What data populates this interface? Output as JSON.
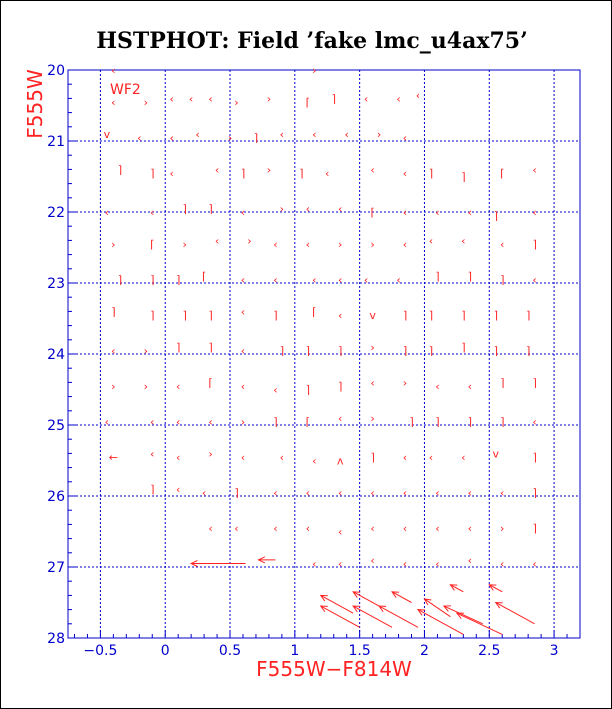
{
  "chart_data": {
    "type": "scatter",
    "title": "HSTPHOT: Field ’fake lmc_u4ax75’",
    "xlabel": "F555W−F814W",
    "ylabel": "F555W",
    "chip_label": "WF2",
    "xlim": [
      -0.75,
      3.2
    ],
    "ylim": [
      28,
      20
    ],
    "y_inverted": true,
    "grid": true,
    "x_ticks": [
      -0.5,
      0,
      0.5,
      1,
      1.5,
      2,
      2.5,
      3
    ],
    "x_tick_labels": [
      "−0.5",
      "0",
      "0.5",
      "1",
      "1.5",
      "2",
      "2.5",
      "3"
    ],
    "y_ticks": [
      20,
      21,
      22,
      23,
      24,
      25,
      26,
      27,
      28
    ],
    "y_tick_labels": [
      "20",
      "21",
      "22",
      "23",
      "24",
      "25",
      "26",
      "27",
      "28"
    ],
    "colors": {
      "axes": "#0000cc",
      "grid": "#0000cc",
      "markers": "#ff2222",
      "text": "#ff2222",
      "title": "#000000"
    },
    "markers": [
      {
        "x": -0.4,
        "y": 20.45,
        "s": "‹"
      },
      {
        "x": -0.15,
        "y": 20.45,
        "s": "›"
      },
      {
        "x": 0.05,
        "y": 20.4,
        "s": "‹"
      },
      {
        "x": 0.2,
        "y": 20.4,
        "s": "‹"
      },
      {
        "x": 0.35,
        "y": 20.4,
        "s": "‹"
      },
      {
        "x": 0.55,
        "y": 20.45,
        "s": "›"
      },
      {
        "x": 0.8,
        "y": 20.4,
        "s": "›"
      },
      {
        "x": 1.1,
        "y": 20.45,
        "s": "⌈"
      },
      {
        "x": 1.3,
        "y": 20.4,
        "s": "⌉"
      },
      {
        "x": 1.55,
        "y": 20.4,
        "s": "‹"
      },
      {
        "x": 1.8,
        "y": 20.4,
        "s": "‹"
      },
      {
        "x": 1.95,
        "y": 20.35,
        "s": "‹"
      },
      {
        "x": -0.45,
        "y": 20.9,
        "s": "v"
      },
      {
        "x": -0.2,
        "y": 20.95,
        "s": "‹"
      },
      {
        "x": 0.05,
        "y": 20.95,
        "s": "‹"
      },
      {
        "x": 0.25,
        "y": 20.9,
        "s": "‹"
      },
      {
        "x": 0.5,
        "y": 20.95,
        "s": "›"
      },
      {
        "x": 0.7,
        "y": 20.95,
        "s": "⌉"
      },
      {
        "x": 0.9,
        "y": 20.9,
        "s": "‹"
      },
      {
        "x": 1.15,
        "y": 20.9,
        "s": "‹"
      },
      {
        "x": 1.4,
        "y": 20.9,
        "s": "‹"
      },
      {
        "x": 1.65,
        "y": 20.9,
        "s": "›"
      },
      {
        "x": 1.85,
        "y": 20.95,
        "s": "‹"
      },
      {
        "x": -0.35,
        "y": 21.4,
        "s": "⌉"
      },
      {
        "x": -0.1,
        "y": 21.45,
        "s": "⌉"
      },
      {
        "x": 0.05,
        "y": 21.45,
        "s": "‹"
      },
      {
        "x": 0.4,
        "y": 21.4,
        "s": "‹"
      },
      {
        "x": 0.6,
        "y": 21.45,
        "s": "⌉"
      },
      {
        "x": 0.8,
        "y": 21.4,
        "s": "›"
      },
      {
        "x": 1.05,
        "y": 21.45,
        "s": "⌉"
      },
      {
        "x": 1.25,
        "y": 21.45,
        "s": "‹"
      },
      {
        "x": 1.6,
        "y": 21.4,
        "s": "‹"
      },
      {
        "x": 1.85,
        "y": 21.45,
        "s": "‹"
      },
      {
        "x": 2.05,
        "y": 21.45,
        "s": "⌉"
      },
      {
        "x": 2.3,
        "y": 21.5,
        "s": "⌉"
      },
      {
        "x": 2.6,
        "y": 21.45,
        "s": "⌈"
      },
      {
        "x": 2.85,
        "y": 21.4,
        "s": "‹"
      },
      {
        "x": -0.45,
        "y": 22.0,
        "s": "‹"
      },
      {
        "x": -0.1,
        "y": 22.0,
        "s": "‹"
      },
      {
        "x": 0.15,
        "y": 21.95,
        "s": "⌉"
      },
      {
        "x": 0.35,
        "y": 21.95,
        "s": "⌉"
      },
      {
        "x": 0.6,
        "y": 22.0,
        "s": "‹"
      },
      {
        "x": 0.9,
        "y": 21.95,
        "s": "›"
      },
      {
        "x": 1.1,
        "y": 21.95,
        "s": "‹"
      },
      {
        "x": 1.35,
        "y": 21.95,
        "s": "‹"
      },
      {
        "x": 1.6,
        "y": 22.0,
        "s": "⌈"
      },
      {
        "x": 1.85,
        "y": 22.0,
        "s": "‹"
      },
      {
        "x": 2.1,
        "y": 22.0,
        "s": "‹"
      },
      {
        "x": 2.35,
        "y": 22.0,
        "s": "‹"
      },
      {
        "x": 2.55,
        "y": 22.05,
        "s": "⌉"
      },
      {
        "x": 2.85,
        "y": 22.0,
        "s": "‹"
      },
      {
        "x": -0.4,
        "y": 22.45,
        "s": "›"
      },
      {
        "x": -0.1,
        "y": 22.45,
        "s": "⌈"
      },
      {
        "x": 0.15,
        "y": 22.45,
        "s": "›"
      },
      {
        "x": 0.4,
        "y": 22.4,
        "s": "‹"
      },
      {
        "x": 0.65,
        "y": 22.4,
        "s": "›"
      },
      {
        "x": 0.85,
        "y": 22.45,
        "s": "‹"
      },
      {
        "x": 1.1,
        "y": 22.45,
        "s": "‹"
      },
      {
        "x": 1.35,
        "y": 22.45,
        "s": "›"
      },
      {
        "x": 1.6,
        "y": 22.45,
        "s": "›"
      },
      {
        "x": 1.85,
        "y": 22.45,
        "s": "‹"
      },
      {
        "x": 2.05,
        "y": 22.4,
        "s": "‹"
      },
      {
        "x": 2.3,
        "y": 22.4,
        "s": "‹"
      },
      {
        "x": 2.6,
        "y": 22.45,
        "s": "‹"
      },
      {
        "x": 2.85,
        "y": 22.45,
        "s": "⌉"
      },
      {
        "x": -0.35,
        "y": 22.95,
        "s": "⌉"
      },
      {
        "x": -0.1,
        "y": 22.95,
        "s": "⌉"
      },
      {
        "x": 0.1,
        "y": 22.95,
        "s": "⌉"
      },
      {
        "x": 0.3,
        "y": 22.9,
        "s": "⌈"
      },
      {
        "x": 0.6,
        "y": 22.95,
        "s": "‹"
      },
      {
        "x": 0.85,
        "y": 22.95,
        "s": "‹"
      },
      {
        "x": 1.15,
        "y": 22.95,
        "s": "‹"
      },
      {
        "x": 1.35,
        "y": 22.95,
        "s": "‹"
      },
      {
        "x": 1.55,
        "y": 22.95,
        "s": "‹"
      },
      {
        "x": 1.8,
        "y": 22.95,
        "s": "‹"
      },
      {
        "x": 2.1,
        "y": 22.9,
        "s": "⌉"
      },
      {
        "x": 2.35,
        "y": 22.9,
        "s": "⌉"
      },
      {
        "x": 2.6,
        "y": 22.95,
        "s": "⌉"
      },
      {
        "x": 2.85,
        "y": 22.95,
        "s": "‹"
      },
      {
        "x": -0.4,
        "y": 23.4,
        "s": "⌉"
      },
      {
        "x": -0.1,
        "y": 23.45,
        "s": "⌉"
      },
      {
        "x": 0.15,
        "y": 23.45,
        "s": "⌉"
      },
      {
        "x": 0.35,
        "y": 23.45,
        "s": "⌉"
      },
      {
        "x": 0.6,
        "y": 23.4,
        "s": "‹"
      },
      {
        "x": 0.85,
        "y": 23.45,
        "s": "⌉"
      },
      {
        "x": 1.15,
        "y": 23.4,
        "s": "⌈"
      },
      {
        "x": 1.35,
        "y": 23.45,
        "s": "‹"
      },
      {
        "x": 1.6,
        "y": 23.45,
        "s": "v"
      },
      {
        "x": 1.85,
        "y": 23.45,
        "s": "⌉"
      },
      {
        "x": 2.05,
        "y": 23.45,
        "s": "⌉"
      },
      {
        "x": 2.3,
        "y": 23.45,
        "s": "⌉"
      },
      {
        "x": 2.55,
        "y": 23.45,
        "s": "⌉"
      },
      {
        "x": 2.8,
        "y": 23.45,
        "s": "⌉"
      },
      {
        "x": -0.4,
        "y": 23.95,
        "s": "‹"
      },
      {
        "x": -0.15,
        "y": 23.95,
        "s": "›"
      },
      {
        "x": 0.1,
        "y": 23.9,
        "s": "⌉"
      },
      {
        "x": 0.35,
        "y": 23.9,
        "s": "⌉"
      },
      {
        "x": 0.6,
        "y": 23.95,
        "s": "‹"
      },
      {
        "x": 0.9,
        "y": 23.95,
        "s": "⌉"
      },
      {
        "x": 1.1,
        "y": 23.95,
        "s": "⌉"
      },
      {
        "x": 1.35,
        "y": 23.95,
        "s": "⌉"
      },
      {
        "x": 1.6,
        "y": 23.9,
        "s": "›"
      },
      {
        "x": 1.85,
        "y": 23.95,
        "s": "⌉"
      },
      {
        "x": 2.05,
        "y": 23.95,
        "s": "⌉"
      },
      {
        "x": 2.3,
        "y": 23.9,
        "s": "⌉"
      },
      {
        "x": 2.55,
        "y": 23.95,
        "s": "⌉"
      },
      {
        "x": 2.8,
        "y": 23.95,
        "s": "⌉"
      },
      {
        "x": -0.4,
        "y": 24.45,
        "s": "›"
      },
      {
        "x": -0.15,
        "y": 24.45,
        "s": "›"
      },
      {
        "x": 0.1,
        "y": 24.45,
        "s": "‹"
      },
      {
        "x": 0.35,
        "y": 24.4,
        "s": "⌈"
      },
      {
        "x": 0.6,
        "y": 24.45,
        "s": "‹"
      },
      {
        "x": 0.85,
        "y": 24.5,
        "s": "‹"
      },
      {
        "x": 1.1,
        "y": 24.5,
        "s": "⌉"
      },
      {
        "x": 1.35,
        "y": 24.45,
        "s": "⌉"
      },
      {
        "x": 1.6,
        "y": 24.4,
        "s": "‹"
      },
      {
        "x": 1.85,
        "y": 24.4,
        "s": "›"
      },
      {
        "x": 2.1,
        "y": 24.45,
        "s": "‹"
      },
      {
        "x": 2.35,
        "y": 24.45,
        "s": "‹"
      },
      {
        "x": 2.6,
        "y": 24.4,
        "s": "⌉"
      },
      {
        "x": 2.85,
        "y": 24.4,
        "s": "⌉"
      },
      {
        "x": -0.45,
        "y": 24.95,
        "s": "‹"
      },
      {
        "x": -0.1,
        "y": 24.95,
        "s": "‹"
      },
      {
        "x": 0.1,
        "y": 24.95,
        "s": "‹"
      },
      {
        "x": 0.35,
        "y": 24.95,
        "s": "‹"
      },
      {
        "x": 0.6,
        "y": 24.95,
        "s": "›"
      },
      {
        "x": 0.85,
        "y": 24.95,
        "s": "⌉"
      },
      {
        "x": 1.1,
        "y": 24.95,
        "s": "⌈"
      },
      {
        "x": 1.35,
        "y": 24.9,
        "s": "‹"
      },
      {
        "x": 1.6,
        "y": 24.9,
        "s": "›"
      },
      {
        "x": 1.9,
        "y": 24.95,
        "s": "⌉"
      },
      {
        "x": 2.1,
        "y": 24.95,
        "s": "⌉"
      },
      {
        "x": 2.35,
        "y": 24.95,
        "s": "⌉"
      },
      {
        "x": 2.6,
        "y": 24.95,
        "s": "⌉"
      },
      {
        "x": 2.85,
        "y": 24.95,
        "s": "‹"
      },
      {
        "x": -0.4,
        "y": 25.45,
        "s": "←"
      },
      {
        "x": -0.1,
        "y": 25.4,
        "s": "‹"
      },
      {
        "x": 0.1,
        "y": 25.45,
        "s": "‹"
      },
      {
        "x": 0.35,
        "y": 25.4,
        "s": "›"
      },
      {
        "x": 0.6,
        "y": 25.45,
        "s": "‹"
      },
      {
        "x": 0.9,
        "y": 25.45,
        "s": "‹"
      },
      {
        "x": 1.15,
        "y": 25.5,
        "s": "‹"
      },
      {
        "x": 1.35,
        "y": 25.5,
        "s": "ʌ"
      },
      {
        "x": 1.6,
        "y": 25.45,
        "s": "⌉"
      },
      {
        "x": 1.85,
        "y": 25.45,
        "s": "‹"
      },
      {
        "x": 2.05,
        "y": 25.45,
        "s": "‹"
      },
      {
        "x": 2.3,
        "y": 25.45,
        "s": "‹"
      },
      {
        "x": 2.55,
        "y": 25.4,
        "s": "v"
      },
      {
        "x": 2.85,
        "y": 25.45,
        "s": "⌉"
      },
      {
        "x": -0.1,
        "y": 25.9,
        "s": "⌉"
      },
      {
        "x": 0.1,
        "y": 25.9,
        "s": "‹"
      },
      {
        "x": 0.3,
        "y": 25.95,
        "s": "‹"
      },
      {
        "x": 0.55,
        "y": 25.95,
        "s": "⌉"
      },
      {
        "x": 0.85,
        "y": 25.95,
        "s": "‹"
      },
      {
        "x": 1.1,
        "y": 25.95,
        "s": "‹"
      },
      {
        "x": 1.35,
        "y": 25.95,
        "s": "‹"
      },
      {
        "x": 1.6,
        "y": 25.95,
        "s": "‹"
      },
      {
        "x": 1.85,
        "y": 25.95,
        "s": "‹"
      },
      {
        "x": 2.1,
        "y": 25.95,
        "s": "‹"
      },
      {
        "x": 2.35,
        "y": 25.95,
        "s": "‹"
      },
      {
        "x": 2.6,
        "y": 25.95,
        "s": "‹"
      },
      {
        "x": 2.85,
        "y": 25.95,
        "s": "⌉"
      },
      {
        "x": 0.35,
        "y": 26.45,
        "s": "‹"
      },
      {
        "x": 0.55,
        "y": 26.45,
        "s": "‹"
      },
      {
        "x": 0.85,
        "y": 26.45,
        "s": "‹"
      },
      {
        "x": 1.1,
        "y": 26.45,
        "s": "‹"
      },
      {
        "x": 1.35,
        "y": 26.5,
        "s": "‹"
      },
      {
        "x": 1.6,
        "y": 26.45,
        "s": "‹"
      },
      {
        "x": 1.85,
        "y": 26.45,
        "s": "‹"
      },
      {
        "x": 2.1,
        "y": 26.45,
        "s": "‹"
      },
      {
        "x": 2.35,
        "y": 26.45,
        "s": "‹"
      },
      {
        "x": 2.6,
        "y": 26.45,
        "s": "›"
      },
      {
        "x": 2.85,
        "y": 26.45,
        "s": "⌉"
      },
      {
        "x": 1.15,
        "y": 26.95,
        "s": "‹"
      },
      {
        "x": 1.35,
        "y": 26.95,
        "s": "‹"
      },
      {
        "x": 1.6,
        "y": 26.9,
        "s": "‹"
      },
      {
        "x": 1.85,
        "y": 26.95,
        "s": "‹"
      },
      {
        "x": 2.1,
        "y": 26.95,
        "s": "‹"
      },
      {
        "x": 2.35,
        "y": 26.9,
        "s": "‹"
      },
      {
        "x": 2.6,
        "y": 26.95,
        "s": "‹"
      },
      {
        "x": 2.85,
        "y": 26.95,
        "s": "‹"
      },
      {
        "x": 1.15,
        "y": 20.0,
        "s": "›"
      },
      {
        "x": -0.4,
        "y": 20.0,
        "s": "‹"
      }
    ],
    "vectors": [
      {
        "x0": 0.62,
        "y0": 26.95,
        "x1": 0.2,
        "y1": 26.95
      },
      {
        "x0": 0.85,
        "y0": 26.9,
        "x1": 0.72,
        "y1": 26.9
      },
      {
        "x0": 1.5,
        "y0": 27.85,
        "x1": 1.2,
        "y1": 27.55
      },
      {
        "x0": 1.45,
        "y0": 27.65,
        "x1": 1.2,
        "y1": 27.4
      },
      {
        "x0": 1.75,
        "y0": 27.85,
        "x1": 1.45,
        "y1": 27.55
      },
      {
        "x0": 1.65,
        "y0": 27.55,
        "x1": 1.45,
        "y1": 27.35
      },
      {
        "x0": 1.95,
        "y0": 27.85,
        "x1": 1.65,
        "y1": 27.55
      },
      {
        "x0": 1.9,
        "y0": 27.5,
        "x1": 1.75,
        "y1": 27.35
      },
      {
        "x0": 2.3,
        "y0": 27.95,
        "x1": 1.95,
        "y1": 27.6
      },
      {
        "x0": 2.2,
        "y0": 27.7,
        "x1": 2.0,
        "y1": 27.45
      },
      {
        "x0": 2.45,
        "y0": 27.8,
        "x1": 2.15,
        "y1": 27.55
      },
      {
        "x0": 2.3,
        "y0": 27.35,
        "x1": 2.2,
        "y1": 27.25
      },
      {
        "x0": 2.6,
        "y0": 27.95,
        "x1": 2.25,
        "y1": 27.65
      },
      {
        "x0": 2.6,
        "y0": 27.35,
        "x1": 2.5,
        "y1": 27.25
      },
      {
        "x0": 2.85,
        "y0": 27.8,
        "x1": 2.55,
        "y1": 27.5
      }
    ]
  }
}
